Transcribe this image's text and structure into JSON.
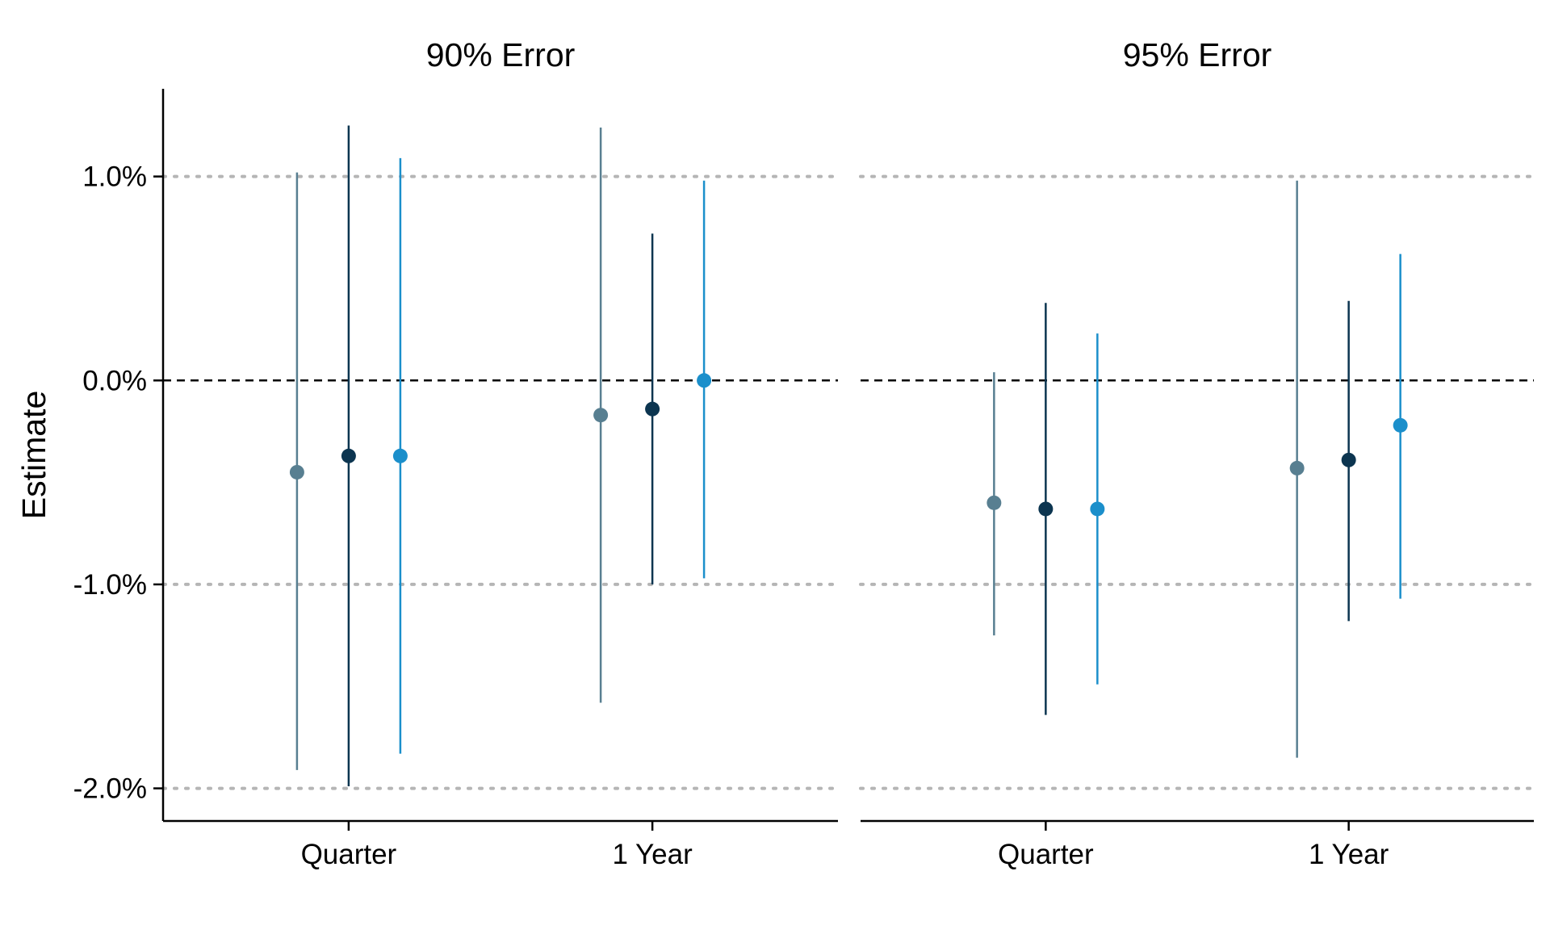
{
  "chart_data": {
    "type": "scatter",
    "subtype": "point-range",
    "ylabel": "Estimate",
    "y_ticks": [
      1.0,
      0.0,
      -1.0,
      -2.0
    ],
    "y_tick_labels": [
      "1.0%",
      "0.0%",
      "-1.0%",
      "-2.0%"
    ],
    "ylim": [
      -2.16,
      1.43
    ],
    "reference_line": 0.0,
    "grid_lines": [
      1.0,
      -1.0,
      -2.0
    ],
    "categories": [
      "Quarter",
      "1 Year"
    ],
    "series_colors": [
      "#587f91",
      "#0c3550",
      "#1b8fcb"
    ],
    "panels": [
      {
        "title": "90% Error",
        "groups": [
          {
            "category": "Quarter",
            "points": [
              {
                "estimate": -0.45,
                "low": -1.91,
                "high": 1.02
              },
              {
                "estimate": -0.37,
                "low": -1.99,
                "high": 1.25
              },
              {
                "estimate": -0.37,
                "low": -1.83,
                "high": 1.09
              }
            ]
          },
          {
            "category": "1 Year",
            "points": [
              {
                "estimate": -0.17,
                "low": -1.58,
                "high": 1.24
              },
              {
                "estimate": -0.14,
                "low": -1.0,
                "high": 0.72
              },
              {
                "estimate": 0.0,
                "low": -0.97,
                "high": 0.98
              }
            ]
          }
        ]
      },
      {
        "title": "95% Error",
        "groups": [
          {
            "category": "Quarter",
            "points": [
              {
                "estimate": -0.6,
                "low": -1.25,
                "high": 0.04
              },
              {
                "estimate": -0.63,
                "low": -1.64,
                "high": 0.38
              },
              {
                "estimate": -0.63,
                "low": -1.49,
                "high": 0.23
              }
            ]
          },
          {
            "category": "1 Year",
            "points": [
              {
                "estimate": -0.43,
                "low": -1.85,
                "high": 0.98
              },
              {
                "estimate": -0.39,
                "low": -1.18,
                "high": 0.39
              },
              {
                "estimate": -0.22,
                "low": -1.07,
                "high": 0.62
              }
            ]
          }
        ]
      }
    ]
  }
}
